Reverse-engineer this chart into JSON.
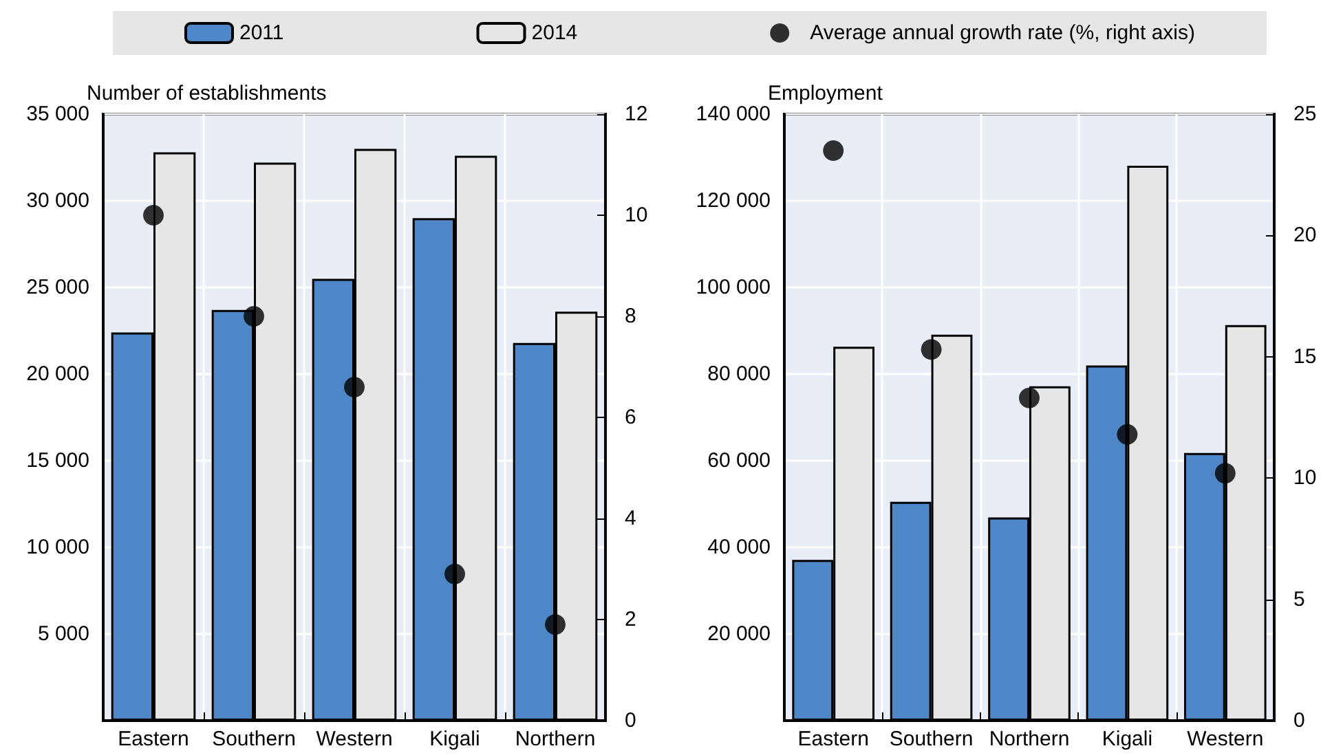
{
  "chart_data": [
    {
      "type": "bar",
      "ylabel": "Number of establishments",
      "categories": [
        "Eastern",
        "Southern",
        "Western",
        "Kigali",
        "Northern"
      ],
      "series": [
        {
          "name": "2011",
          "color": "#4d87c7",
          "values": [
            22400,
            23700,
            25500,
            29000,
            21800
          ]
        },
        {
          "name": "2014",
          "color": "#e6e6e6",
          "values": [
            32800,
            32200,
            33000,
            32600,
            23600
          ]
        },
        {
          "name": "Average annual growth rate (%, right axis)",
          "type": "scatter",
          "axis": "y2",
          "marker": "circle",
          "color": "#000000",
          "values": [
            10.0,
            8.0,
            6.6,
            2.9,
            1.9
          ]
        }
      ],
      "ylim": [
        0,
        35000
      ],
      "yticks": [
        {
          "value": 0,
          "label": null
        },
        {
          "value": 5000,
          "label": "5 000"
        },
        {
          "value": 10000,
          "label": "10 000"
        },
        {
          "value": 15000,
          "label": "15 000"
        },
        {
          "value": 20000,
          "label": "20 000"
        },
        {
          "value": 25000,
          "label": "25 000"
        },
        {
          "value": 30000,
          "label": "30 000"
        },
        {
          "value": 35000,
          "label": "35 000"
        }
      ],
      "y2lim": [
        0,
        12
      ],
      "y2ticks": [
        0,
        2,
        4,
        6,
        8,
        10,
        12
      ],
      "grid": true,
      "legend": "top"
    },
    {
      "type": "bar",
      "ylabel": "Employment",
      "categories": [
        "Eastern",
        "Southern",
        "Northern",
        "Kigali",
        "Western"
      ],
      "series": [
        {
          "color": "#4d87c7",
          "values": [
            37100,
            50500,
            46900,
            82000,
            61800
          ]
        },
        {
          "color": "#e6e6e6",
          "values": [
            86300,
            89100,
            77200,
            128100,
            91300
          ]
        },
        {
          "type": "scatter",
          "axis": "y2",
          "marker": "circle",
          "color": "#000000",
          "values": [
            23.5,
            15.3,
            13.3,
            11.8,
            10.2
          ]
        }
      ],
      "ylim": [
        0,
        140000
      ],
      "yticks": [
        {
          "value": 0,
          "label": null
        },
        {
          "value": 20000,
          "label": "20 000"
        },
        {
          "value": 40000,
          "label": "40 000"
        },
        {
          "value": 60000,
          "label": "60 000"
        },
        {
          "value": 80000,
          "label": "80 000"
        },
        {
          "value": 100000,
          "label": "100 000"
        },
        {
          "value": 120000,
          "label": "120 000"
        },
        {
          "value": 140000,
          "label": "140 000"
        }
      ],
      "y2lim": [
        0,
        25
      ],
      "y2ticks": [
        0,
        5,
        10,
        15,
        20,
        25
      ],
      "grid": true,
      "legend": false
    }
  ]
}
